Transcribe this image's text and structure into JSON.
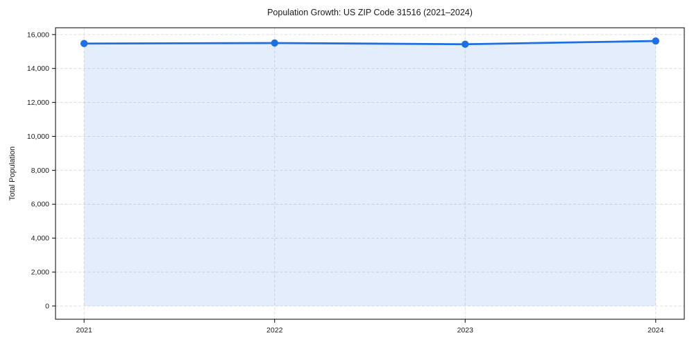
{
  "figure": {
    "title": "Population Growth: US ZIP Code 31516 (2021–2024)"
  },
  "chart_data": {
    "type": "line",
    "title": "Population Growth: US ZIP Code 31516 (2021–2024)",
    "xlabel": "",
    "ylabel": "Total Population",
    "x": [
      2021,
      2022,
      2023,
      2024
    ],
    "series": [
      {
        "name": "Total Population",
        "values": [
          15470,
          15500,
          15430,
          15620
        ]
      }
    ],
    "xticks": [
      2021,
      2022,
      2023,
      2024
    ],
    "yticks": [
      0,
      2000,
      4000,
      6000,
      8000,
      10000,
      12000,
      14000,
      16000
    ],
    "xlim": [
      2020.85,
      2024.15
    ],
    "ylim": [
      -780,
      16400
    ],
    "grid": true,
    "grid_style": "dashed",
    "legend_position": "none",
    "area_fill": true,
    "fill_baseline": 0,
    "marker": "circle",
    "colors": {
      "line": "#1f6fe0",
      "marker": "#1f6fe0",
      "fill": "rgba(31,111,224,0.12)",
      "grid": "#d9d9d9",
      "spine": "#000000",
      "text": "#1a1a1a"
    }
  }
}
